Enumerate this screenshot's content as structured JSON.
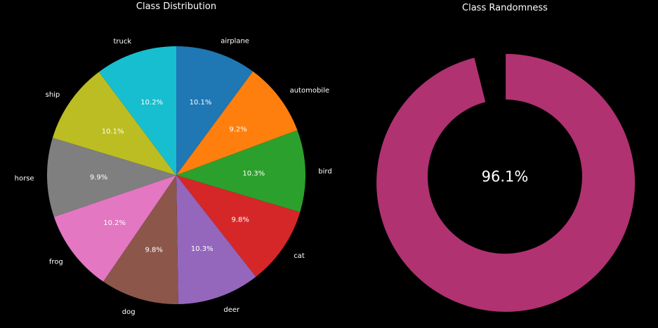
{
  "chart_data": [
    {
      "type": "pie",
      "title": "Class Distribution",
      "start_angle_deg": 90,
      "direction": "clockwise",
      "slices": [
        {
          "label": "airplane",
          "value": 10.1,
          "pct_label": "10.1%",
          "color": "#1f77b4"
        },
        {
          "label": "automobile",
          "value": 9.2,
          "pct_label": "9.2%",
          "color": "#ff7f0e"
        },
        {
          "label": "bird",
          "value": 10.3,
          "pct_label": "10.3%",
          "color": "#2ca02c"
        },
        {
          "label": "cat",
          "value": 9.8,
          "pct_label": "9.8%",
          "color": "#d62728"
        },
        {
          "label": "deer",
          "value": 10.3,
          "pct_label": "10.3%",
          "color": "#9467bd"
        },
        {
          "label": "dog",
          "value": 9.8,
          "pct_label": "9.8%",
          "color": "#8c564b"
        },
        {
          "label": "frog",
          "value": 10.2,
          "pct_label": "10.2%",
          "color": "#e377c2"
        },
        {
          "label": "horse",
          "value": 9.9,
          "pct_label": "9.9%",
          "color": "#7f7f7f"
        },
        {
          "label": "ship",
          "value": 10.1,
          "pct_label": "10.1%",
          "color": "#bcbd22"
        },
        {
          "label": "truck",
          "value": 10.2,
          "pct_label": "10.2%",
          "color": "#17becf"
        }
      ]
    },
    {
      "type": "pie",
      "subtype": "donut",
      "title": "Class Randomness",
      "value": 96.1,
      "center_label": "96.1%",
      "start_angle_deg": 90,
      "direction": "clockwise",
      "fill_color": "#b03270",
      "background_color": "#000000"
    }
  ]
}
